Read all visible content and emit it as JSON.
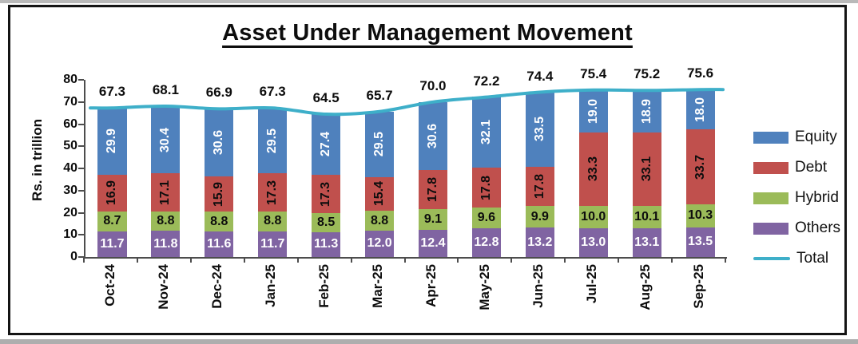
{
  "title": "Asset Under Management Movement",
  "chart_data": {
    "type": "bar",
    "subtype": "stacked-column-with-line",
    "title": "Asset Under Management Movement",
    "xlabel": "",
    "ylabel": "Rs. in trillion",
    "ylim": [
      0,
      80
    ],
    "yticks": [
      0,
      10,
      20,
      30,
      40,
      50,
      60,
      70,
      80
    ],
    "grid": false,
    "legend_position": "right",
    "categories": [
      "Oct-24",
      "Nov-24",
      "Dec-24",
      "Jan-25",
      "Feb-25",
      "Mar-25",
      "Apr-25",
      "May-25",
      "Jun-25",
      "Jul-25",
      "Aug-25",
      "Sep-25"
    ],
    "series": [
      {
        "name": "Others",
        "color": "#8064A2",
        "label_color": "#ffffff",
        "label_rotated": false,
        "values": [
          11.7,
          11.8,
          11.6,
          11.7,
          11.3,
          12.0,
          12.4,
          12.8,
          13.2,
          13.0,
          13.1,
          13.5
        ]
      },
      {
        "name": "Hybrid",
        "color": "#9BBB59",
        "label_color": "#0d0d0d",
        "label_rotated": false,
        "values": [
          8.7,
          8.8,
          8.8,
          8.8,
          8.5,
          8.8,
          9.1,
          9.6,
          9.9,
          10.0,
          10.1,
          10.3
        ]
      },
      {
        "name": "Debt",
        "color": "#C0504D",
        "label_color": "#0d0d0d",
        "label_rotated": true,
        "values": [
          16.9,
          17.1,
          15.9,
          17.3,
          17.3,
          15.4,
          17.8,
          17.8,
          17.8,
          33.3,
          33.1,
          33.7
        ]
      },
      {
        "name": "Equity",
        "color": "#4F81BD",
        "label_color": "#ffffff",
        "label_rotated": true,
        "values": [
          29.9,
          30.4,
          30.6,
          29.5,
          27.4,
          29.5,
          30.6,
          32.1,
          33.5,
          19.0,
          18.9,
          18.0
        ]
      }
    ],
    "line_series": {
      "name": "Total",
      "color": "#3EAFC9",
      "values": [
        67.3,
        68.1,
        66.9,
        67.3,
        64.5,
        65.7,
        70.0,
        72.2,
        74.4,
        75.4,
        75.2,
        75.6
      ]
    },
    "legend": [
      {
        "label": "Equity",
        "color": "#4F81BD",
        "type": "box"
      },
      {
        "label": "Debt",
        "color": "#C0504D",
        "type": "box"
      },
      {
        "label": "Hybrid",
        "color": "#9BBB59",
        "type": "box"
      },
      {
        "label": "Others",
        "color": "#8064A2",
        "type": "box"
      },
      {
        "label": "Total",
        "color": "#3EAFC9",
        "type": "line"
      }
    ]
  }
}
